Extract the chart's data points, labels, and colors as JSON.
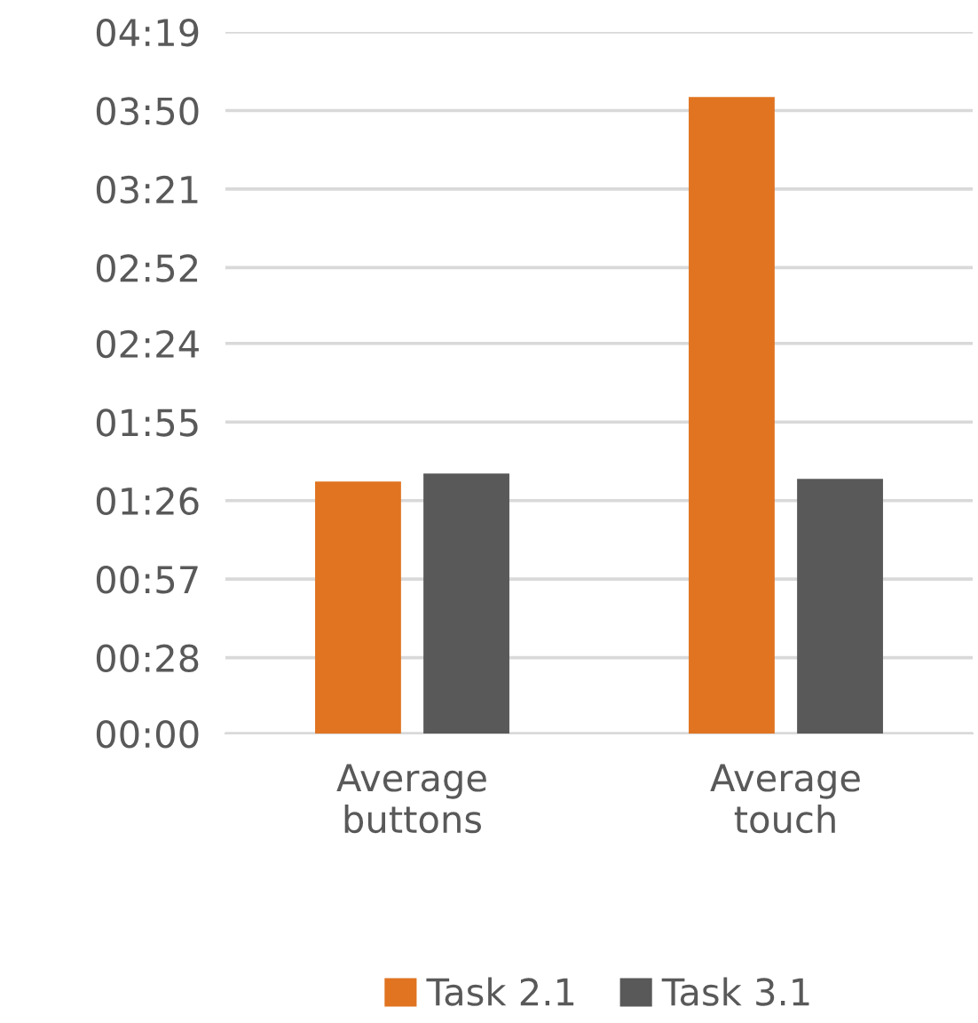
{
  "chart_data": {
    "type": "bar",
    "categories": [
      "Average\nbuttons",
      "Average\ntouch"
    ],
    "series": [
      {
        "name": "Task 2.1",
        "color": "#e07421",
        "values": [
          93,
          235
        ]
      },
      {
        "name": "Task 3.1",
        "color": "#595959",
        "values": [
          96,
          94
        ]
      }
    ],
    "ylim": [
      0,
      259
    ],
    "yticks": [
      {
        "value": 0,
        "label": "00:00"
      },
      {
        "value": 28,
        "label": "00:28"
      },
      {
        "value": 57,
        "label": "00:57"
      },
      {
        "value": 86,
        "label": "01:26"
      },
      {
        "value": 115,
        "label": "01:55"
      },
      {
        "value": 144,
        "label": "02:24"
      },
      {
        "value": 172,
        "label": "02:52"
      },
      {
        "value": 201,
        "label": "03:21"
      },
      {
        "value": 230,
        "label": "03:50"
      },
      {
        "value": 259,
        "label": "04:19"
      }
    ],
    "grid": "y",
    "legend": "bottom"
  }
}
